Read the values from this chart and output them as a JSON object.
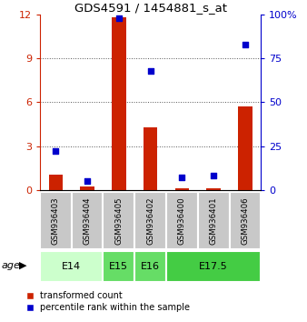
{
  "title": "GDS4591 / 1454881_s_at",
  "samples": [
    "GSM936403",
    "GSM936404",
    "GSM936405",
    "GSM936402",
    "GSM936400",
    "GSM936401",
    "GSM936406"
  ],
  "transformed_count": [
    1.05,
    0.22,
    11.8,
    4.3,
    0.12,
    0.12,
    5.7
  ],
  "percentile_rank": [
    22,
    5,
    98,
    68,
    7,
    8,
    83
  ],
  "bar_color": "#cc2200",
  "point_color": "#0000cc",
  "ylim_left": [
    0,
    12
  ],
  "ylim_right": [
    0,
    100
  ],
  "yticks_left": [
    0,
    3,
    6,
    9,
    12
  ],
  "ytick_labels_left": [
    "0",
    "3",
    "6",
    "9",
    "12"
  ],
  "yticks_right": [
    0,
    25,
    50,
    75,
    100
  ],
  "ytick_labels_right": [
    "0",
    "25",
    "50",
    "75",
    "100%"
  ],
  "age_groups": [
    {
      "label": "E14",
      "start": 0,
      "end": 2,
      "color": "#ccffcc"
    },
    {
      "label": "E15",
      "start": 2,
      "end": 3,
      "color": "#66dd66"
    },
    {
      "label": "E16",
      "start": 3,
      "end": 4,
      "color": "#66dd66"
    },
    {
      "label": "E17.5",
      "start": 4,
      "end": 7,
      "color": "#44cc44"
    }
  ],
  "legend_bar_label": "transformed count",
  "legend_point_label": "percentile rank within the sample",
  "xlabel": "age",
  "sample_box_color": "#c8c8c8",
  "left_axis_color": "#cc2200",
  "right_axis_color": "#0000cc",
  "grid_color": "#555555"
}
